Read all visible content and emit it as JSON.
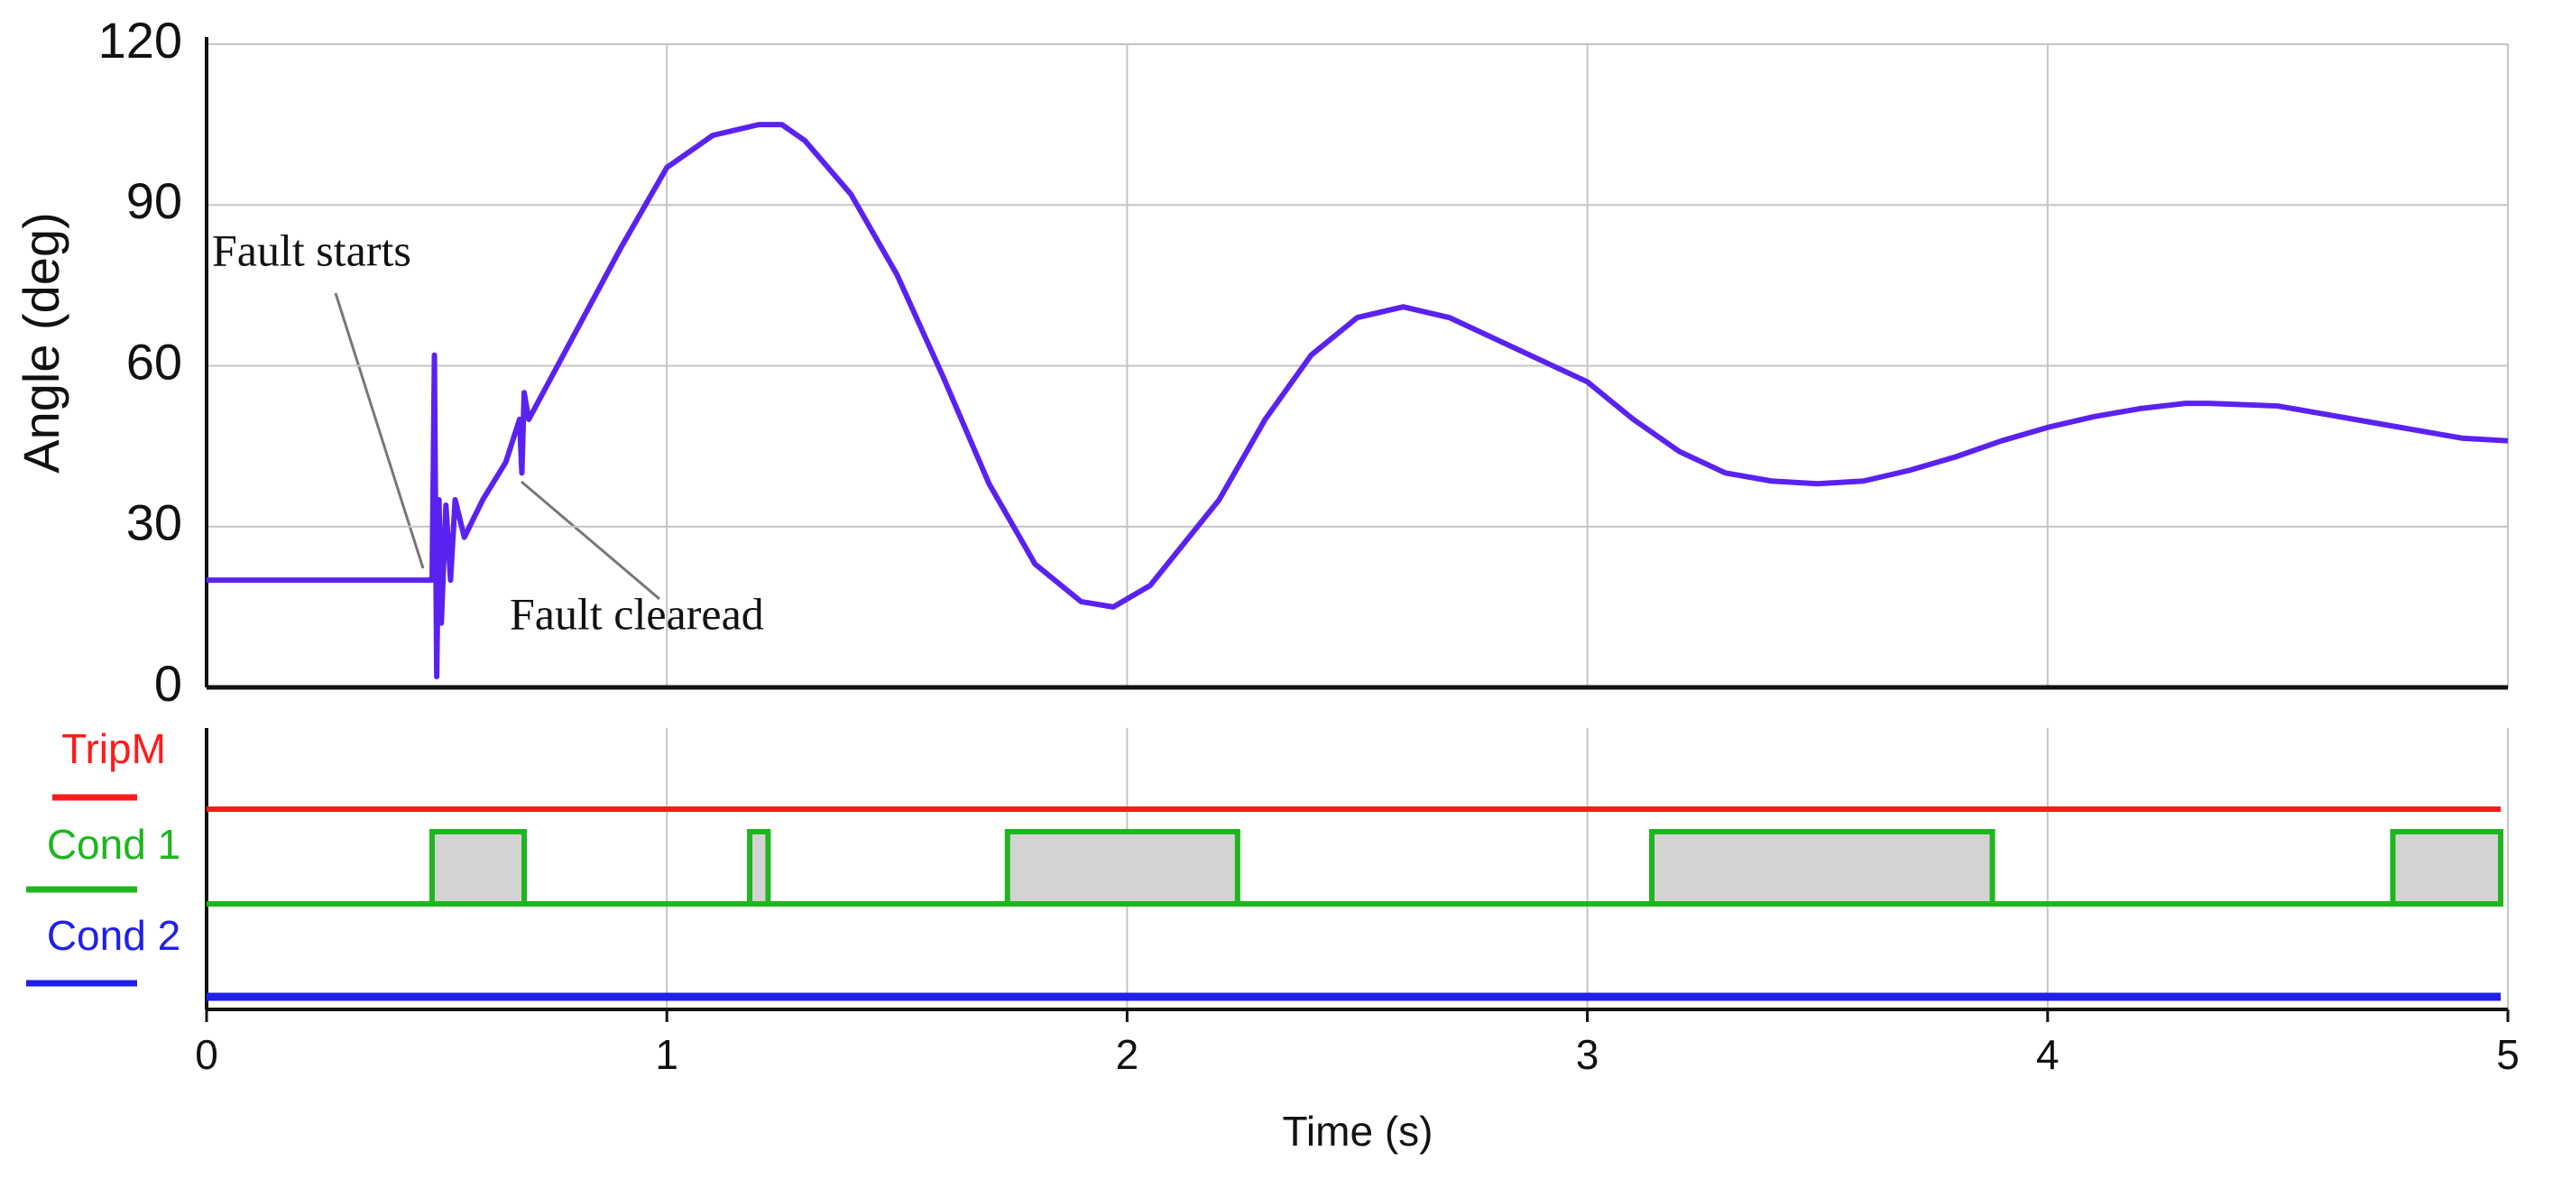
{
  "chart_data": [
    {
      "type": "line",
      "ylabel": "Angle (deg)",
      "xlim": [
        0,
        5
      ],
      "xticks": [
        0,
        1,
        2,
        3,
        4,
        5
      ],
      "ylim": [
        0,
        120
      ],
      "yticks": [
        0,
        30,
        60,
        90,
        120
      ],
      "grid": true,
      "x": [
        0,
        0.49,
        0.495,
        0.5,
        0.505,
        0.51,
        0.52,
        0.53,
        0.54,
        0.56,
        0.6,
        0.65,
        0.68,
        0.685,
        0.69,
        0.7,
        0.75,
        0.8,
        0.9,
        1.0,
        1.1,
        1.2,
        1.25,
        1.3,
        1.4,
        1.5,
        1.6,
        1.7,
        1.8,
        1.9,
        1.97,
        2.05,
        2.2,
        2.3,
        2.4,
        2.5,
        2.6,
        2.7,
        2.8,
        2.9,
        3.0,
        3.1,
        3.2,
        3.3,
        3.4,
        3.5,
        3.6,
        3.7,
        3.8,
        3.9,
        4.0,
        4.1,
        4.2,
        4.3,
        4.35,
        4.5,
        4.6,
        4.7,
        4.8,
        4.9,
        5.0
      ],
      "series": [
        {
          "color": "#5a22f0",
          "values": [
            20,
            20,
            62,
            2,
            35,
            12,
            34,
            20,
            35,
            28,
            35,
            42,
            50,
            40,
            55,
            50,
            58,
            66,
            82,
            97,
            103,
            105,
            105,
            102,
            92,
            77,
            58,
            38,
            23,
            16,
            15,
            19,
            35,
            50,
            62,
            69,
            71,
            69,
            65,
            61,
            57,
            50,
            44,
            40,
            38.5,
            38,
            38.5,
            40.5,
            43,
            46,
            48.5,
            50.5,
            52,
            53,
            53,
            52.5,
            51,
            49.5,
            48,
            46.5,
            46
          ]
        }
      ],
      "annotations": [
        "Fault starts",
        "Fault clearead"
      ]
    },
    {
      "type": "step",
      "xlabel": "Time (s)",
      "xlim": [
        0,
        5
      ],
      "xticks": [
        0,
        1,
        2,
        3,
        4,
        5
      ],
      "grid": true,
      "series": [
        {
          "name": "TripM",
          "color": "#ff1a1a",
          "x": [
            0
          ],
          "values": [
            1
          ]
        },
        {
          "name": "Cond 1",
          "color": "#1fb51f",
          "x": [
            0,
            0.49,
            0.69,
            1.18,
            1.22,
            1.74,
            2.24,
            3.14,
            3.88,
            4.75
          ],
          "values": [
            0,
            1,
            0,
            1,
            0,
            1,
            0,
            1,
            0,
            1
          ]
        },
        {
          "name": "Cond 2",
          "color": "#2020e8",
          "x": [
            0
          ],
          "values": [
            0
          ]
        }
      ]
    }
  ]
}
